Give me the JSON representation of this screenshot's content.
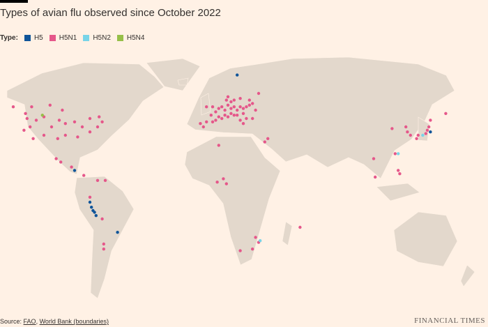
{
  "chart_data": {
    "type": "map",
    "title": "Types of avian flu observed since October 2022",
    "legend_title": "Type:",
    "series": [
      {
        "name": "H5",
        "color": "#0f5499",
        "points": [
          [
            16,
            71
          ],
          [
            -80,
            -5
          ],
          [
            -79,
            -8
          ],
          [
            -78,
            -10
          ],
          [
            -76,
            -13
          ],
          [
            -77,
            -11
          ],
          [
            -62,
            -23
          ],
          [
            -90,
            14
          ],
          [
            142,
            37
          ]
        ]
      },
      {
        "name": "H5N1",
        "color": "#e5578a",
        "points": [
          [
            -130,
            52
          ],
          [
            -121,
            45
          ],
          [
            -119,
            40
          ],
          [
            -123,
            38
          ],
          [
            -115,
            44
          ],
          [
            -110,
            46
          ],
          [
            -105,
            40
          ],
          [
            -100,
            44
          ],
          [
            -96,
            42
          ],
          [
            -90,
            43
          ],
          [
            -85,
            40
          ],
          [
            -80,
            37
          ],
          [
            -75,
            40
          ],
          [
            -72,
            43
          ],
          [
            -96,
            35
          ],
          [
            -101,
            33
          ],
          [
            -88,
            34
          ],
          [
            -110,
            35
          ],
          [
            -118,
            52
          ],
          [
            -106,
            53
          ],
          [
            -98,
            50
          ],
          [
            -80,
            45
          ],
          [
            -74,
            46
          ],
          [
            -117,
            33
          ],
          [
            -122,
            48
          ],
          [
            -102,
            21
          ],
          [
            -99,
            19
          ],
          [
            -92,
            16
          ],
          [
            -84,
            11
          ],
          [
            -75,
            8
          ],
          [
            -70,
            8
          ],
          [
            -72,
            -15
          ],
          [
            -71,
            -30
          ],
          [
            -71,
            -33
          ],
          [
            -80,
            -2
          ],
          [
            -4,
            52
          ],
          [
            0,
            52
          ],
          [
            2,
            49
          ],
          [
            4,
            51
          ],
          [
            6,
            52
          ],
          [
            8,
            50
          ],
          [
            10,
            53
          ],
          [
            12,
            51
          ],
          [
            14,
            52
          ],
          [
            16,
            50
          ],
          [
            18,
            52
          ],
          [
            20,
            51
          ],
          [
            22,
            52
          ],
          [
            24,
            53
          ],
          [
            8,
            47
          ],
          [
            10,
            46
          ],
          [
            12,
            48
          ],
          [
            14,
            47
          ],
          [
            16,
            47
          ],
          [
            20,
            48
          ],
          [
            4,
            46
          ],
          [
            6,
            45
          ],
          [
            -1,
            47
          ],
          [
            2,
            44
          ],
          [
            -4,
            43
          ],
          [
            0,
            43
          ],
          [
            -8,
            42
          ],
          [
            12,
            55
          ],
          [
            9,
            56
          ],
          [
            14,
            56
          ],
          [
            18,
            57
          ],
          [
            24,
            56
          ],
          [
            26,
            54
          ],
          [
            28,
            50
          ],
          [
            22,
            45
          ],
          [
            26,
            45
          ],
          [
            20,
            42
          ],
          [
            10,
            58
          ],
          [
            30,
            60
          ],
          [
            -6,
            40
          ],
          [
            18,
            44
          ],
          [
            36,
            33
          ],
          [
            34,
            31
          ],
          [
            4,
            29
          ],
          [
            7,
            9
          ],
          [
            9,
            6
          ],
          [
            3,
            7
          ],
          [
            28,
            -26
          ],
          [
            26,
            -33
          ],
          [
            18,
            -34
          ],
          [
            30,
            -29
          ],
          [
            57,
            -20
          ],
          [
            127,
            37
          ],
          [
            129,
            35
          ],
          [
            134,
            35
          ],
          [
            139,
            36
          ],
          [
            140,
            38
          ],
          [
            141,
            40
          ],
          [
            142,
            44
          ],
          [
            121,
            14
          ],
          [
            122,
            12
          ],
          [
            106,
            10
          ],
          [
            105,
            21
          ],
          [
            117,
            39
          ],
          [
            126,
            40
          ],
          [
            152,
            48
          ],
          [
            119,
            24
          ],
          [
            133,
            33
          ]
        ]
      },
      {
        "name": "H5N2",
        "color": "#78d4e8",
        "points": [
          [
            137,
            35
          ],
          [
            121,
            24
          ],
          [
            31,
            -28
          ]
        ]
      },
      {
        "name": "H5N4",
        "color": "#96bf48",
        "points": [
          [
            -111,
            47
          ]
        ]
      }
    ]
  },
  "source_label": "Source:",
  "sources": [
    "FAO",
    "World Bank (boundaries)"
  ],
  "brand": "FINANCIAL TIMES"
}
